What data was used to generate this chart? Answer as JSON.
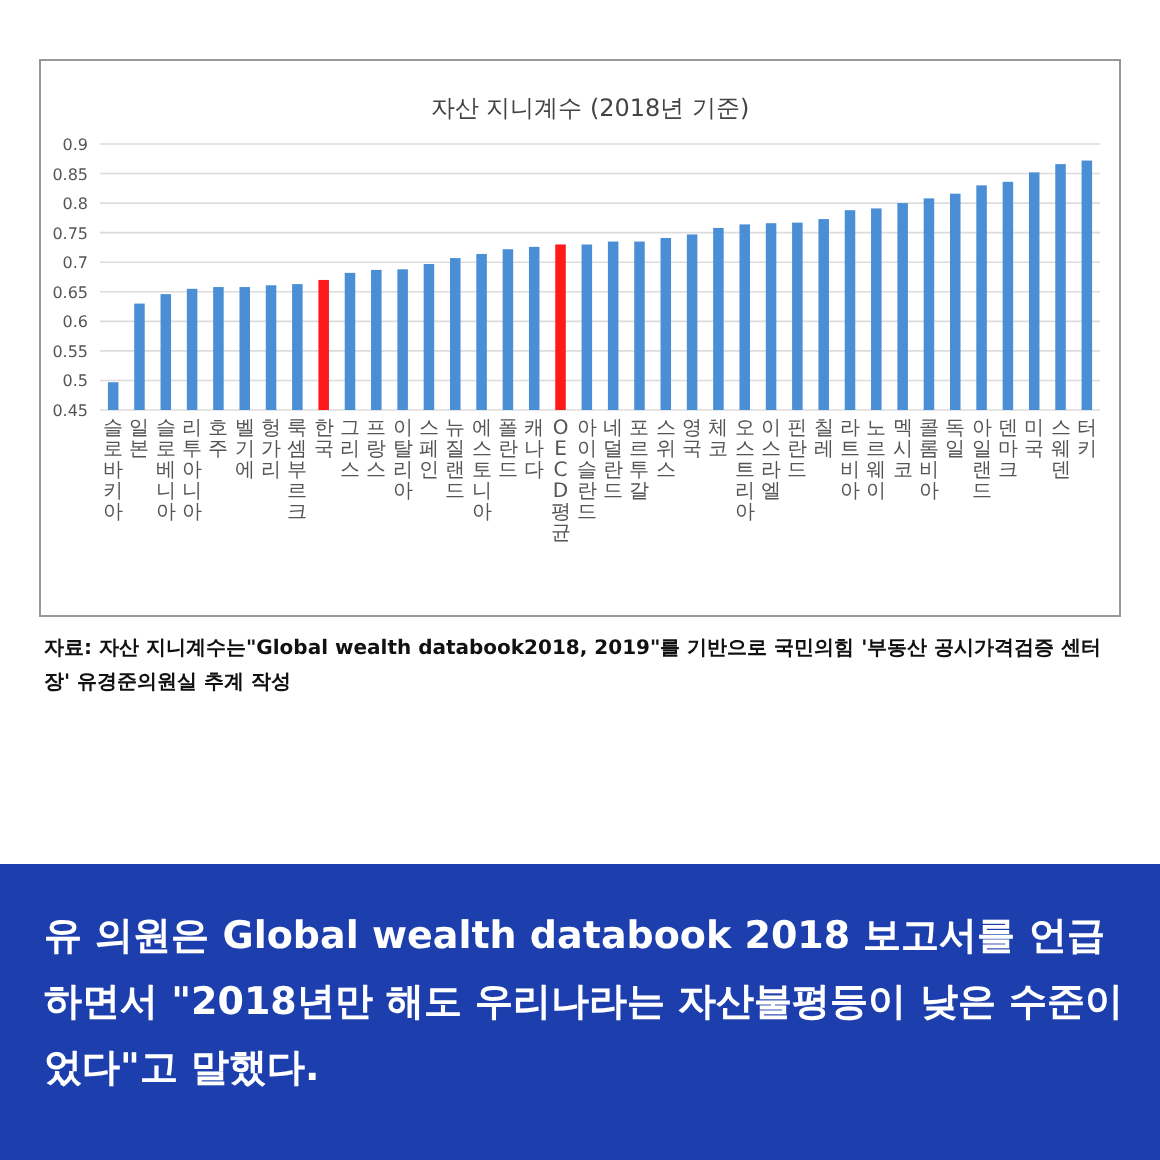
{
  "chart_data": {
    "type": "bar",
    "title": "자산 지니계수 (2018년 기준)",
    "categories": [
      "슬로바키아",
      "일본",
      "슬로베니아",
      "리투아니아",
      "호주",
      "벨기에",
      "헝가리",
      "룩셈부르크",
      "한국",
      "그리스",
      "프랑스",
      "이탈리아",
      "스페인",
      "뉴질랜드",
      "에스토니아",
      "폴란드",
      "캐나다",
      "OECD 평균",
      "아이슬란드",
      "네덜란드",
      "포르투갈",
      "스위스",
      "영국",
      "체코",
      "오스트리아",
      "이스라엘",
      "핀란드",
      "칠레",
      "라트비아",
      "노르웨이",
      "멕시코",
      "콜롬비아",
      "독일",
      "아일랜드",
      "덴마크",
      "미국",
      "스웨덴",
      "터키"
    ],
    "values": [
      0.497,
      0.63,
      0.646,
      0.655,
      0.658,
      0.658,
      0.661,
      0.663,
      0.67,
      0.682,
      0.687,
      0.688,
      0.697,
      0.707,
      0.714,
      0.722,
      0.726,
      0.73,
      0.73,
      0.735,
      0.735,
      0.741,
      0.747,
      0.758,
      0.764,
      0.766,
      0.767,
      0.773,
      0.788,
      0.791,
      0.8,
      0.808,
      0.816,
      0.83,
      0.836,
      0.852,
      0.866,
      0.872
    ],
    "colors": [
      "#4a8fd6",
      "#4a8fd6",
      "#4a8fd6",
      "#4a8fd6",
      "#4a8fd6",
      "#4a8fd6",
      "#4a8fd6",
      "#4a8fd6",
      "#ff1a1a",
      "#4a8fd6",
      "#4a8fd6",
      "#4a8fd6",
      "#4a8fd6",
      "#4a8fd6",
      "#4a8fd6",
      "#4a8fd6",
      "#4a8fd6",
      "#ff1a1a",
      "#4a8fd6",
      "#4a8fd6",
      "#4a8fd6",
      "#4a8fd6",
      "#4a8fd6",
      "#4a8fd6",
      "#4a8fd6",
      "#4a8fd6",
      "#4a8fd6",
      "#4a8fd6",
      "#4a8fd6",
      "#4a8fd6",
      "#4a8fd6",
      "#4a8fd6",
      "#4a8fd6",
      "#4a8fd6",
      "#4a8fd6",
      "#4a8fd6",
      "#4a8fd6",
      "#4a8fd6"
    ],
    "ylim": [
      0.45,
      0.9
    ],
    "yticks": [
      0.45,
      0.5,
      0.55,
      0.6,
      0.65,
      0.7,
      0.75,
      0.8,
      0.85,
      0.9
    ],
    "grid": "y",
    "annotations": [
      "자료: 자산 지니계수는\"Global wealth databook2018, 2019\"를 기반으로 국민의힘 '부동산 공시가격검증 센터장' 유경준의원실 추계 작성",
      "유 의원은 Global wealth databook 2018 보고서를 언급하면서 \"2018년만 해도 우리나라는 자산불평등이 낮은 수준이었다\"고 말했다."
    ]
  }
}
